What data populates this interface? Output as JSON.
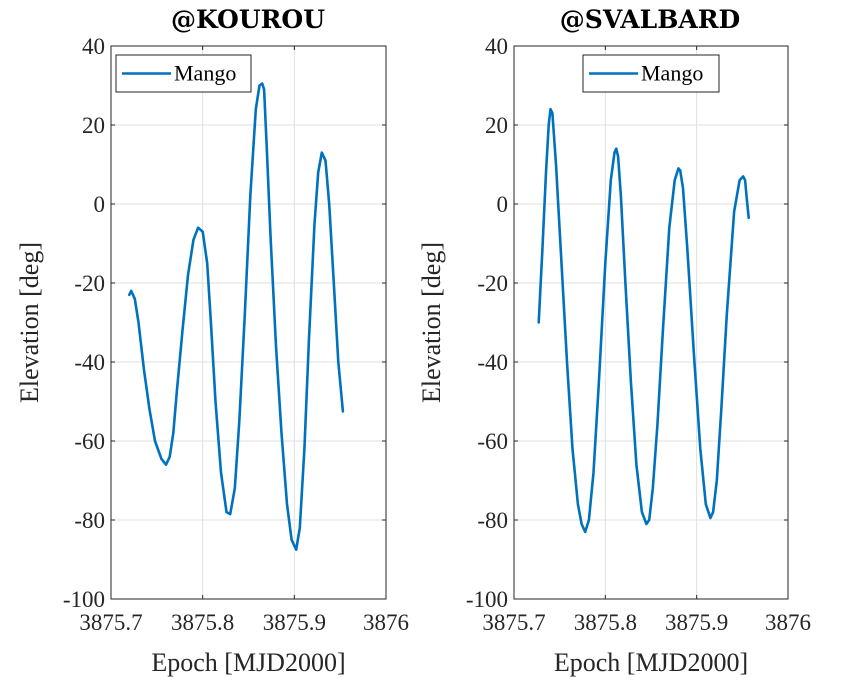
{
  "chart_data": [
    {
      "type": "line",
      "title": "@KOUROU",
      "xlabel": "Epoch [MJD2000]",
      "ylabel": "Elevation [deg]",
      "xlim": [
        3875.7,
        3876
      ],
      "ylim": [
        -100,
        40
      ],
      "xticks": [
        "3875.7",
        "3875.8",
        "3875.9",
        "3876"
      ],
      "yticks": [
        "-100",
        "-80",
        "-60",
        "-40",
        "-20",
        "0",
        "20",
        "40"
      ],
      "grid": true,
      "legend_position": "top-left",
      "series": [
        {
          "name": "Mango",
          "color": "#0072bd",
          "x": [
            3875.72,
            3875.722,
            3875.726,
            3875.73,
            3875.736,
            3875.742,
            3875.748,
            3875.755,
            3875.76,
            3875.764,
            3875.768,
            3875.772,
            3875.778,
            3875.784,
            3875.79,
            3875.795,
            3875.8,
            3875.805,
            3875.809,
            3875.814,
            3875.82,
            3875.826,
            3875.83,
            3875.835,
            3875.84,
            3875.846,
            3875.852,
            3875.858,
            3875.862,
            3875.865,
            3875.867,
            3875.87,
            3875.874,
            3875.88,
            3875.886,
            3875.892,
            3875.897,
            3875.902,
            3875.906,
            3875.911,
            3875.916,
            3875.922,
            3875.926,
            3875.93,
            3875.934,
            3875.938,
            3875.943,
            3875.948,
            3875.953
          ],
          "y": [
            -23,
            -22,
            -24,
            -30,
            -42,
            -52,
            -60,
            -64.5,
            -66,
            -64,
            -58,
            -47,
            -32,
            -18,
            -9,
            -6,
            -7,
            -15,
            -30,
            -50,
            -68,
            -78,
            -78.5,
            -72,
            -55,
            -28,
            2,
            24,
            30,
            30.5,
            29,
            14,
            -8,
            -36,
            -58,
            -76,
            -85,
            -87.5,
            -82,
            -62,
            -34,
            -5,
            8,
            13,
            11,
            0,
            -20,
            -40,
            -52.5
          ]
        }
      ]
    },
    {
      "type": "line",
      "title": "@SVALBARD",
      "xlabel": "Epoch [MJD2000]",
      "ylabel": "Elevation [deg]",
      "xlim": [
        3875.7,
        3876
      ],
      "ylim": [
        -100,
        40
      ],
      "xticks": [
        "3875.7",
        "3875.8",
        "3875.9",
        "3876"
      ],
      "yticks": [
        "-100",
        "-80",
        "-60",
        "-40",
        "-20",
        "0",
        "20",
        "40"
      ],
      "grid": true,
      "legend_position": "top-center",
      "series": [
        {
          "name": "Mango",
          "color": "#0072bd",
          "x": [
            3875.727,
            3875.731,
            3875.735,
            3875.738,
            3875.74,
            3875.742,
            3875.746,
            3875.752,
            3875.758,
            3875.764,
            3875.77,
            3875.774,
            3875.778,
            3875.782,
            3875.787,
            3875.793,
            3875.8,
            3875.806,
            3875.81,
            3875.812,
            3875.814,
            3875.817,
            3875.822,
            3875.828,
            3875.834,
            3875.84,
            3875.845,
            3875.848,
            3875.852,
            3875.857,
            3875.863,
            3875.87,
            3875.876,
            3875.88,
            3875.882,
            3875.885,
            3875.89,
            3875.897,
            3875.904,
            3875.91,
            3875.915,
            3875.918,
            3875.922,
            3875.927,
            3875.933,
            3875.941,
            3875.947,
            3875.951,
            3875.953,
            3875.955,
            3875.957
          ],
          "y": [
            -30,
            -12,
            8,
            20,
            24,
            23,
            10,
            -15,
            -40,
            -62,
            -76,
            -81,
            -83,
            -80,
            -68,
            -45,
            -15,
            6,
            13,
            14,
            12,
            2,
            -20,
            -45,
            -66,
            -78,
            -81,
            -80,
            -72,
            -56,
            -32,
            -6,
            6,
            9,
            8.5,
            4,
            -12,
            -38,
            -62,
            -76,
            -79.5,
            -78,
            -70,
            -52,
            -28,
            -2,
            6,
            7,
            6,
            1,
            -3.5
          ]
        }
      ]
    }
  ]
}
